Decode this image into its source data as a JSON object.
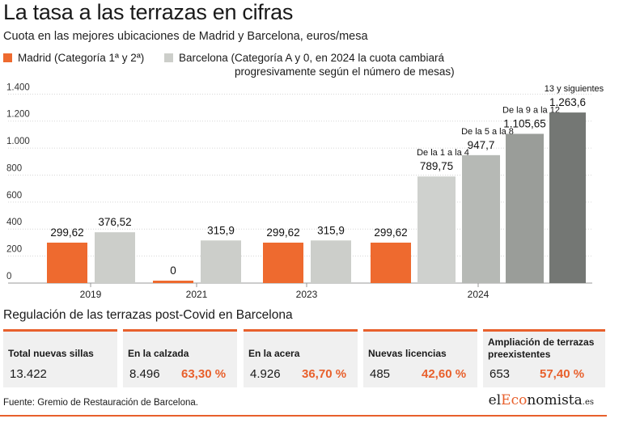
{
  "title": "La tasa a las terrazas en cifras",
  "subtitle": "Cuota en las mejores ubicaciones de Madrid y Barcelona, euros/mesa",
  "legend": {
    "madrid": "Madrid (Categoría 1ª y 2ª)",
    "barcelona_line1": "Barcelona (Categoría A y 0, en 2024 la cuota cambiará",
    "barcelona_line2": "progresivamente según el número de mesas)"
  },
  "colors": {
    "madrid": "#ee6a2f",
    "barcelona": "#ccceca",
    "tier1": "#cfd1ce",
    "tier2": "#b6b9b5",
    "tier3": "#9a9d99",
    "tier4": "#747774",
    "accent": "#e8602c",
    "card_bg": "#f0f0f0"
  },
  "chart_data": {
    "type": "bar",
    "ylim": [
      0,
      1400
    ],
    "yticks": [
      0,
      200,
      400,
      600,
      800,
      1000,
      1200,
      1400
    ],
    "ytick_labels": [
      "0",
      "200",
      "400",
      "600",
      "800",
      "1.000",
      "1.200",
      "1.400"
    ],
    "grid": true,
    "years": [
      "2019",
      "2021",
      "2023",
      "2024"
    ],
    "bars": [
      {
        "year": "2019",
        "series": "madrid",
        "value": 299.62,
        "label": "299,62"
      },
      {
        "year": "2019",
        "series": "barcelona",
        "value": 376.52,
        "label": "376,52"
      },
      {
        "year": "2021",
        "series": "madrid",
        "value": 0,
        "label": "0"
      },
      {
        "year": "2021",
        "series": "barcelona",
        "value": 315.9,
        "label": "315,9"
      },
      {
        "year": "2023",
        "series": "madrid",
        "value": 299.62,
        "label": "299,62"
      },
      {
        "year": "2023",
        "series": "barcelona",
        "value": 315.9,
        "label": "315,9"
      },
      {
        "year": "2024",
        "series": "madrid",
        "value": 299.62,
        "label": "299,62"
      },
      {
        "year": "2024",
        "series": "barcelona",
        "tier": "De la 1 a la 4",
        "value": 789.75,
        "label": "789,75"
      },
      {
        "year": "2024",
        "series": "barcelona",
        "tier": "De la 5 a la 8",
        "value": 947.7,
        "label": "947,7"
      },
      {
        "year": "2024",
        "series": "barcelona",
        "tier": "De la 9 a la 12",
        "value": 1105.65,
        "label": "1.105,65"
      },
      {
        "year": "2024",
        "series": "barcelona",
        "tier": "13 y siguientes",
        "value": 1263.6,
        "label": "1.263,6"
      }
    ]
  },
  "regulation": {
    "title": "Regulación de las terrazas post-Covid en Barcelona",
    "cards": [
      {
        "head1": "Total nuevas sillas",
        "head2": "",
        "value": "13.422",
        "pct": ""
      },
      {
        "head1": "En la calzada",
        "head2": "",
        "value": "8.496",
        "pct": "63,30 %"
      },
      {
        "head1": "En la acera",
        "head2": "",
        "value": "4.926",
        "pct": "36,70 %"
      },
      {
        "head1": "Nuevas licencias",
        "head2": "",
        "value": "485",
        "pct": "42,60 %"
      },
      {
        "head1": "Ampliación de terrazas",
        "head2": "preexistentes",
        "value": "653",
        "pct": "57,40 %"
      }
    ]
  },
  "source": "Fuente: Gremio de Restauración de Barcelona.",
  "brand": {
    "pre": "el",
    "accent": "Eco",
    "post": "nomista",
    "suffix": ".es"
  }
}
